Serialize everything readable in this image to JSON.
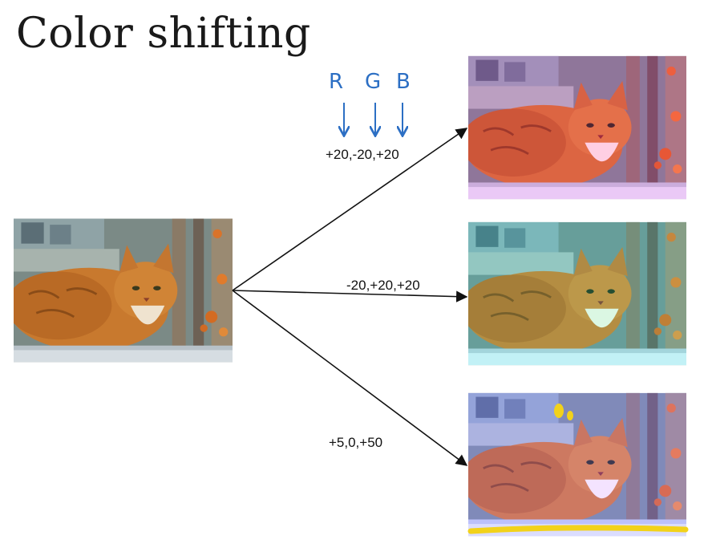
{
  "title": "Color shifting",
  "channels": [
    "R",
    "G",
    "B"
  ],
  "shifts": [
    {
      "label": "+20,-20,+20",
      "r": 20,
      "g": -20,
      "b": 20
    },
    {
      "label": "-20,+20,+20",
      "r": -20,
      "g": 20,
      "b": 20
    },
    {
      "label": "+5,0,+50",
      "r": 5,
      "g": 0,
      "b": 50
    }
  ],
  "colors": {
    "handwriting": "#2c6fc4",
    "arrow": "#111111",
    "annotation": "#f2d21b"
  }
}
